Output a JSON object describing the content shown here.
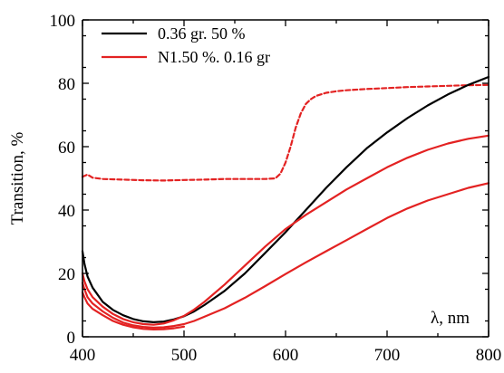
{
  "chart_data": {
    "type": "line",
    "title": "",
    "xlabel": "λ, nm",
    "ylabel": "Transition, %",
    "xlim": [
      400,
      800
    ],
    "ylim": [
      0,
      100
    ],
    "x_ticks": [
      400,
      500,
      600,
      700,
      800
    ],
    "y_ticks": [
      0,
      20,
      40,
      60,
      80,
      100
    ],
    "grid": false,
    "legend": {
      "placement": "top-left",
      "entries": [
        {
          "label": "0.36 gr. 50 %",
          "color": "#000000",
          "dash": "solid"
        },
        {
          "label": "N1.50 %. 0.16 gr",
          "color": "#e32222",
          "dash": "solid"
        }
      ]
    },
    "series": [
      {
        "color": "#e32222",
        "dash": "dashed",
        "x": [
          400,
          405,
          410,
          420,
          440,
          460,
          480,
          500,
          520,
          540,
          560,
          580,
          590,
          595,
          600,
          605,
          610,
          615,
          620,
          625,
          630,
          640,
          650,
          660,
          680,
          700,
          720,
          740,
          760,
          780,
          800
        ],
        "y": [
          50.5,
          51.2,
          50.2,
          49.8,
          49.6,
          49.4,
          49.3,
          49.5,
          49.6,
          49.8,
          49.8,
          49.8,
          50.0,
          51.5,
          55.0,
          60.0,
          66.0,
          70.5,
          73.5,
          75.0,
          76.0,
          77.0,
          77.5,
          77.8,
          78.2,
          78.5,
          78.8,
          79.0,
          79.2,
          79.4,
          79.5
        ]
      },
      {
        "color": "#000000",
        "dash": "solid",
        "x": [
          400,
          402,
          405,
          410,
          420,
          430,
          440,
          450,
          460,
          470,
          480,
          490,
          500,
          510,
          520,
          540,
          560,
          580,
          600,
          620,
          640,
          660,
          680,
          700,
          720,
          740,
          760,
          780,
          800
        ],
        "y": [
          27,
          23,
          19,
          15.5,
          11,
          8.5,
          6.8,
          5.6,
          4.9,
          4.6,
          4.8,
          5.5,
          6.5,
          8.0,
          10.0,
          14.5,
          20.0,
          26.5,
          33.0,
          40.0,
          47.0,
          53.5,
          59.5,
          64.5,
          69.0,
          73.0,
          76.5,
          79.5,
          82.0
        ]
      },
      {
        "color": "#e32222",
        "dash": "solid",
        "x": [
          400,
          402,
          405,
          410,
          420,
          430,
          440,
          450,
          460,
          470,
          480,
          490,
          500,
          510,
          520,
          540,
          560,
          580,
          600,
          620,
          640,
          660,
          680,
          700,
          720,
          740,
          760,
          780,
          800
        ],
        "y": [
          20,
          17.5,
          15,
          12.5,
          9.5,
          7.2,
          5.6,
          4.6,
          4.0,
          3.8,
          4.2,
          5.2,
          6.6,
          8.6,
          11.0,
          16.5,
          22.5,
          28.5,
          34.0,
          38.5,
          42.5,
          46.5,
          50.0,
          53.5,
          56.5,
          59.0,
          61.0,
          62.5,
          63.5
        ]
      },
      {
        "color": "#e32222",
        "dash": "solid",
        "x": [
          400,
          402,
          405,
          410,
          420,
          430,
          440,
          450,
          460,
          470,
          480,
          490,
          500,
          510,
          520,
          540,
          560,
          580,
          600,
          620,
          640,
          660,
          680,
          700,
          720,
          740,
          760,
          780,
          800
        ],
        "y": [
          17,
          15,
          12.5,
          10.5,
          8.0,
          6.0,
          4.5,
          3.6,
          3.1,
          2.9,
          3.0,
          3.4,
          4.0,
          5.0,
          6.3,
          9.0,
          12.3,
          16.0,
          19.8,
          23.5,
          27.0,
          30.5,
          34.0,
          37.5,
          40.5,
          43.0,
          45.0,
          47.0,
          48.5
        ]
      },
      {
        "color": "#e32222",
        "dash": "solid",
        "x": [
          400,
          402,
          405,
          410,
          420,
          430,
          440,
          450,
          460,
          470,
          480,
          490,
          500
        ],
        "y": [
          14,
          12.5,
          10.5,
          8.8,
          6.8,
          5.0,
          3.8,
          3.0,
          2.5,
          2.3,
          2.4,
          2.7,
          3.2
        ]
      }
    ]
  }
}
